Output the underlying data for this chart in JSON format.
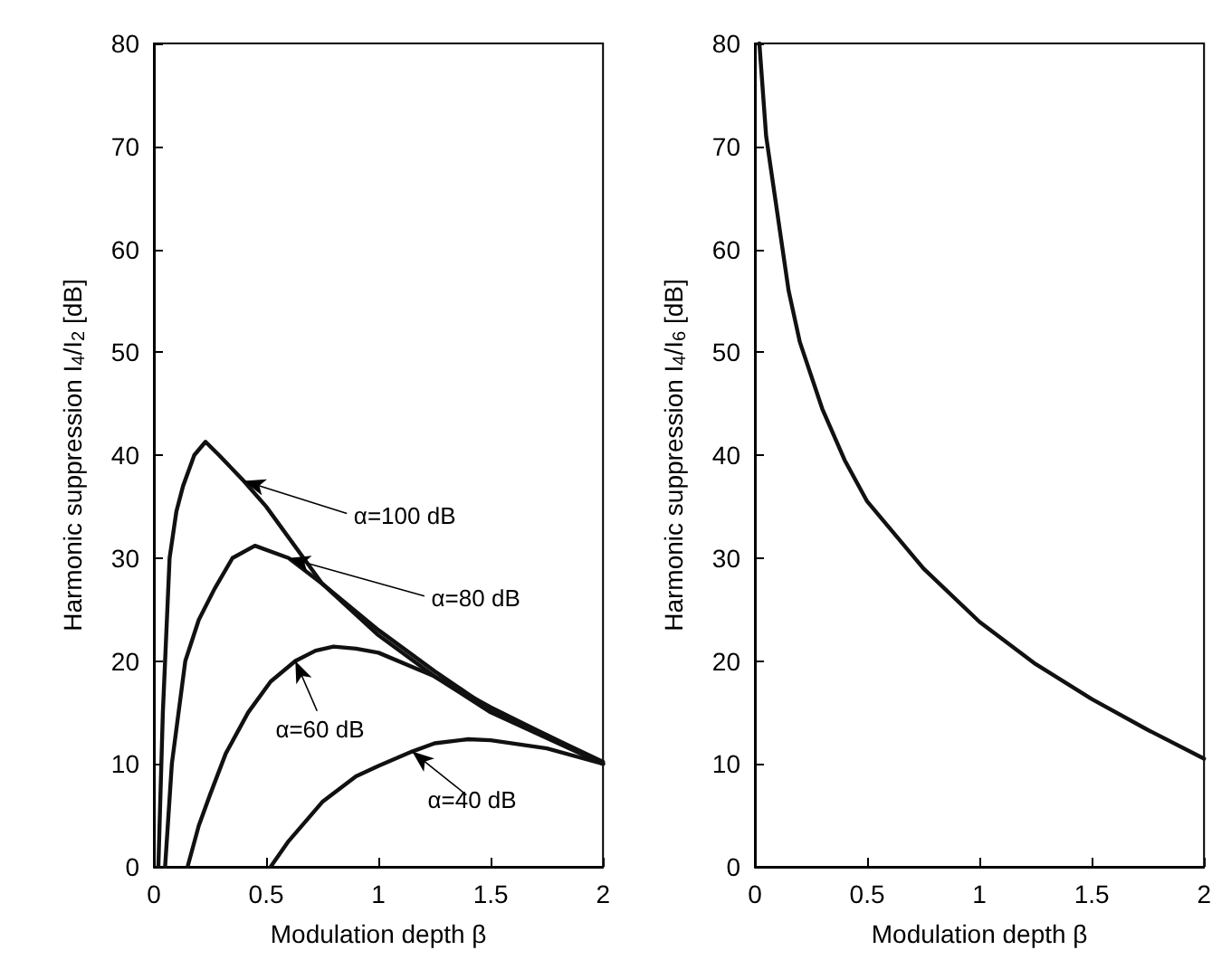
{
  "chart_data": [
    {
      "type": "line",
      "xlabel": "Modulation depth β",
      "ylabel": "Harmonic suppression I$_{4}$/I$_{2}$ [dB]",
      "xlim": [
        0,
        2
      ],
      "ylim": [
        0,
        80
      ],
      "xticks": [
        0,
        0.5,
        1,
        1.5,
        2
      ],
      "yticks": [
        0,
        10,
        20,
        30,
        40,
        50,
        60,
        70,
        80
      ],
      "grid": false,
      "marker": "none",
      "line_style": "solid",
      "series": [
        {
          "color": "#111111",
          "x": [
            0.02,
            0.04,
            0.07,
            0.1,
            0.13,
            0.18,
            0.23,
            0.29,
            0.4,
            0.5,
            0.75,
            1.0,
            1.25,
            1.5,
            1.75,
            2.0
          ],
          "values": [
            0,
            15,
            30,
            34.5,
            37,
            40,
            41.3,
            40,
            37.5,
            35,
            27.5,
            22.5,
            18.5,
            15,
            12.5,
            10
          ]
        },
        {
          "color": "#111111",
          "x": [
            0.05,
            0.08,
            0.14,
            0.2,
            0.27,
            0.35,
            0.45,
            0.6,
            0.75,
            1.0,
            1.25,
            1.5,
            1.75,
            2.0
          ],
          "values": [
            0,
            10,
            20,
            24,
            27,
            30,
            31.2,
            30,
            27.5,
            23,
            19,
            15.3,
            12.8,
            10.2
          ]
        },
        {
          "color": "#111111",
          "x": [
            0.15,
            0.2,
            0.25,
            0.32,
            0.42,
            0.52,
            0.63,
            0.72,
            0.8,
            0.9,
            1.0,
            1.25,
            1.5,
            1.75,
            2.0
          ],
          "values": [
            0,
            4,
            7,
            11,
            15,
            18,
            20,
            21,
            21.4,
            21.2,
            20.8,
            18.5,
            15.5,
            12.8,
            10
          ]
        },
        {
          "color": "#111111",
          "x": [
            0.52,
            0.6,
            0.75,
            0.9,
            1.0,
            1.15,
            1.25,
            1.4,
            1.5,
            1.75,
            2.0
          ],
          "values": [
            0,
            2.5,
            6.3,
            8.8,
            9.8,
            11.2,
            12,
            12.4,
            12.3,
            11.5,
            10
          ]
        }
      ],
      "annotations": [
        {
          "text": "α=100 dB",
          "x": 0.4,
          "y": 37.5
        },
        {
          "text": "α=80 dB",
          "x": 0.6,
          "y": 30
        },
        {
          "text": "α=60 dB",
          "x": 0.63,
          "y": 20
        },
        {
          "text": "α=40 dB",
          "x": 1.15,
          "y": 11.2
        }
      ]
    },
    {
      "type": "line",
      "xlabel": "Modulation depth β",
      "ylabel": "Harmonic suppression I$_{4}$/I$_{6}$ [dB]",
      "xlim": [
        0,
        2
      ],
      "ylim": [
        0,
        80
      ],
      "xticks": [
        0,
        0.5,
        1,
        1.5,
        2
      ],
      "yticks": [
        0,
        10,
        20,
        30,
        40,
        50,
        60,
        70,
        80
      ],
      "grid": false,
      "marker": "none",
      "line_style": "solid",
      "series": [
        {
          "color": "#111111",
          "x": [
            0.02,
            0.05,
            0.1,
            0.15,
            0.2,
            0.3,
            0.4,
            0.5,
            0.75,
            1.0,
            1.25,
            1.5,
            1.75,
            2.0
          ],
          "values": [
            80,
            71,
            63.5,
            56,
            51,
            44.5,
            39.5,
            35.5,
            29,
            23.8,
            19.7,
            16.3,
            13.3,
            10.5
          ]
        }
      ]
    }
  ]
}
